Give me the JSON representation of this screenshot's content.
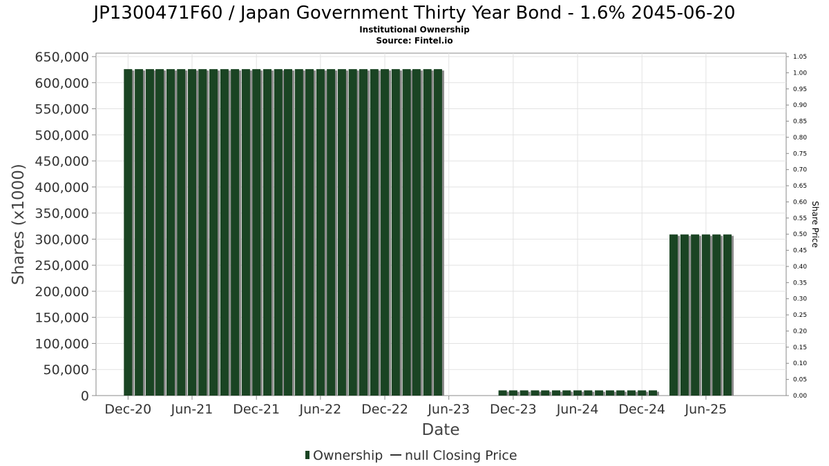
{
  "chart_data": {
    "type": "bar",
    "title": "JP1300471F60 / Japan Government Thirty Year Bond - 1.6% 2045-06-20",
    "subtitle_lines": [
      "Institutional Ownership",
      "Source: Fintel.io"
    ],
    "xlabel": "Date",
    "ylabel": "Shares (x1000)",
    "y2label": "Share Price",
    "ylim": [
      0,
      650000
    ],
    "y2lim": [
      0,
      1.05
    ],
    "yticks": [
      "0",
      "50,000",
      "100,000",
      "150,000",
      "200,000",
      "250,000",
      "300,000",
      "350,000",
      "400,000",
      "450,000",
      "500,000",
      "550,000",
      "600,000",
      "650,000"
    ],
    "y2ticks": [
      "0.00",
      "0.05",
      "0.10",
      "0.15",
      "0.20",
      "0.25",
      "0.30",
      "0.35",
      "0.40",
      "0.45",
      "0.50",
      "0.55",
      "0.60",
      "0.65",
      "0.70",
      "0.75",
      "0.80",
      "0.85",
      "0.90",
      "0.95",
      "1.00",
      "1.05"
    ],
    "xticks": [
      {
        "label": "Dec-20",
        "date": "2020-12-01"
      },
      {
        "label": "Jun-21",
        "date": "2021-06-01"
      },
      {
        "label": "Dec-21",
        "date": "2021-12-01"
      },
      {
        "label": "Jun-22",
        "date": "2022-06-01"
      },
      {
        "label": "Dec-22",
        "date": "2022-12-01"
      },
      {
        "label": "Jun-23",
        "date": "2023-06-01"
      },
      {
        "label": "Dec-23",
        "date": "2023-12-01"
      },
      {
        "label": "Jun-24",
        "date": "2024-06-01"
      },
      {
        "label": "Dec-24",
        "date": "2024-12-01"
      },
      {
        "label": "Jun-25",
        "date": "2025-06-01"
      }
    ],
    "xrange": [
      "2020-09-01",
      "2026-01-15"
    ],
    "grid": true,
    "legend_position": "bottom",
    "series": [
      {
        "name": "Ownership",
        "color": "#1a4423",
        "points": [
          [
            "2020-12-01",
            626000
          ],
          [
            "2021-01-01",
            626000
          ],
          [
            "2021-02-01",
            626000
          ],
          [
            "2021-03-01",
            626000
          ],
          [
            "2021-04-01",
            626000
          ],
          [
            "2021-05-01",
            626000
          ],
          [
            "2021-06-01",
            626000
          ],
          [
            "2021-07-01",
            626000
          ],
          [
            "2021-08-01",
            626000
          ],
          [
            "2021-09-01",
            626000
          ],
          [
            "2021-10-01",
            626000
          ],
          [
            "2021-11-01",
            626000
          ],
          [
            "2021-12-01",
            626000
          ],
          [
            "2022-01-01",
            626000
          ],
          [
            "2022-02-01",
            626000
          ],
          [
            "2022-03-01",
            626000
          ],
          [
            "2022-04-01",
            626000
          ],
          [
            "2022-05-01",
            626000
          ],
          [
            "2022-06-01",
            626000
          ],
          [
            "2022-07-01",
            626000
          ],
          [
            "2022-08-01",
            626000
          ],
          [
            "2022-09-01",
            626000
          ],
          [
            "2022-10-01",
            626000
          ],
          [
            "2022-11-01",
            626000
          ],
          [
            "2022-12-01",
            626000
          ],
          [
            "2023-01-01",
            626000
          ],
          [
            "2023-02-01",
            626000
          ],
          [
            "2023-03-01",
            626000
          ],
          [
            "2023-04-01",
            626000
          ],
          [
            "2023-05-01",
            626000
          ],
          [
            "2023-11-01",
            10000
          ],
          [
            "2023-12-01",
            10000
          ],
          [
            "2024-01-01",
            10000
          ],
          [
            "2024-02-01",
            10000
          ],
          [
            "2024-03-01",
            10000
          ],
          [
            "2024-04-01",
            10000
          ],
          [
            "2024-05-01",
            10000
          ],
          [
            "2024-06-01",
            10000
          ],
          [
            "2024-07-01",
            10000
          ],
          [
            "2024-08-01",
            10000
          ],
          [
            "2024-09-01",
            10000
          ],
          [
            "2024-10-01",
            10000
          ],
          [
            "2024-11-01",
            10000
          ],
          [
            "2024-12-01",
            10000
          ],
          [
            "2025-01-01",
            10000
          ],
          [
            "2025-03-01",
            309000
          ],
          [
            "2025-04-01",
            309000
          ],
          [
            "2025-05-01",
            309000
          ],
          [
            "2025-06-01",
            309000
          ],
          [
            "2025-07-01",
            309000
          ],
          [
            "2025-08-01",
            309000
          ]
        ]
      }
    ],
    "legend": [
      {
        "name": "Ownership",
        "marker": "bar",
        "color": "#1a4423"
      },
      {
        "name": "null Closing Price",
        "marker": "line",
        "color": "#333333"
      }
    ]
  }
}
